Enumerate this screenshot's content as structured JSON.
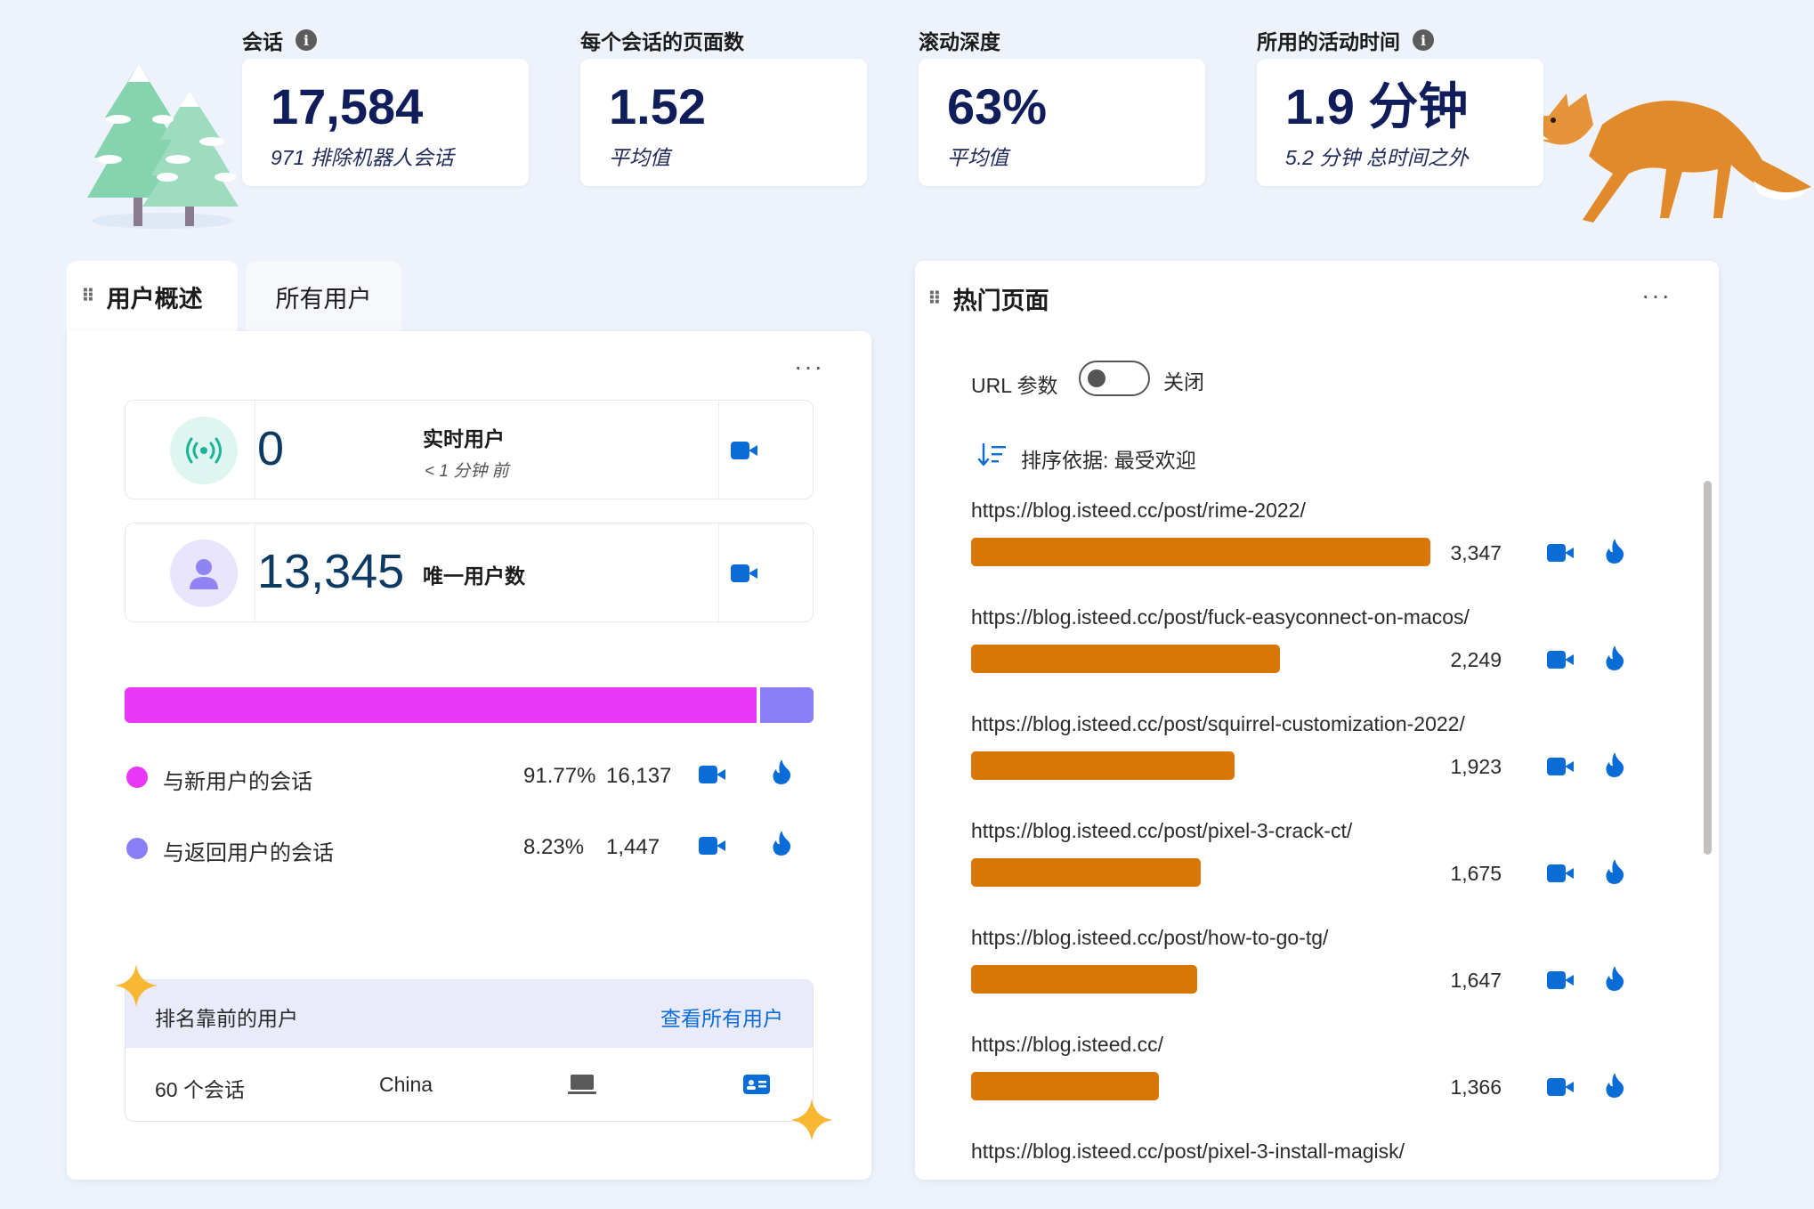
{
  "metrics": [
    {
      "label": "会话",
      "value": "17,584",
      "sub": "971 排除机器人会话",
      "has_info": true
    },
    {
      "label": "每个会话的页面数",
      "value": "1.52",
      "sub": "平均值",
      "has_info": false
    },
    {
      "label": "滚动深度",
      "value": "63%",
      "sub": "平均值",
      "has_info": false
    },
    {
      "label": "所用的活动时间",
      "value": "1.9 分钟",
      "sub": "5.2 分钟 总时间之外",
      "has_info": true
    }
  ],
  "user_panel": {
    "tabs": [
      "用户概述",
      "所有用户"
    ],
    "active_tab": "用户概述",
    "live_users": {
      "value": "0",
      "label": "实时用户",
      "sub": "< 1 分钟 前"
    },
    "unique_users": {
      "value": "13,345",
      "label": "唯一用户数"
    },
    "split": {
      "new_fraction": 0.9177,
      "new_color": "#e837f5",
      "return_color": "#8a7ff7"
    },
    "legend": [
      {
        "label": "与新用户的会话",
        "percent": "91.77%",
        "count": "16,137",
        "color": "#e837f5"
      },
      {
        "label": "与返回用户的会话",
        "percent": "8.23%",
        "count": "1,447",
        "color": "#8a7ff7"
      }
    ],
    "top_users": {
      "title": "排名靠前的用户",
      "link": "查看所有用户",
      "row": {
        "sessions": "60 个会话",
        "country": "China"
      }
    }
  },
  "pages_panel": {
    "title": "热门页面",
    "url_param_label": "URL 参数",
    "toggle_state": "关闭",
    "sort_label": "排序依据: 最受欢迎",
    "bar_color": "#d97706",
    "pages": [
      {
        "url": "https://blog.isteed.cc/post/rime-2022/",
        "count": "3,347",
        "value": 3347
      },
      {
        "url": "https://blog.isteed.cc/post/fuck-easyconnect-on-macos/",
        "count": "2,249",
        "value": 2249
      },
      {
        "url": "https://blog.isteed.cc/post/squirrel-customization-2022/",
        "count": "1,923",
        "value": 1923
      },
      {
        "url": "https://blog.isteed.cc/post/pixel-3-crack-ct/",
        "count": "1,675",
        "value": 1675
      },
      {
        "url": "https://blog.isteed.cc/post/how-to-go-tg/",
        "count": "1,647",
        "value": 1647
      },
      {
        "url": "https://blog.isteed.cc/",
        "count": "1,366",
        "value": 1366
      },
      {
        "url": "https://blog.isteed.cc/post/pixel-3-install-magisk/",
        "count": "",
        "value": null
      }
    ]
  },
  "icons": [
    "info-icon",
    "drag-grip-icon",
    "more-icon",
    "live-signal-icon",
    "user-icon",
    "video-camera-icon",
    "flame-icon",
    "sort-icon",
    "laptop-icon",
    "contact-card-icon",
    "tree-illustration",
    "fox-illustration",
    "sparkle-icon"
  ]
}
